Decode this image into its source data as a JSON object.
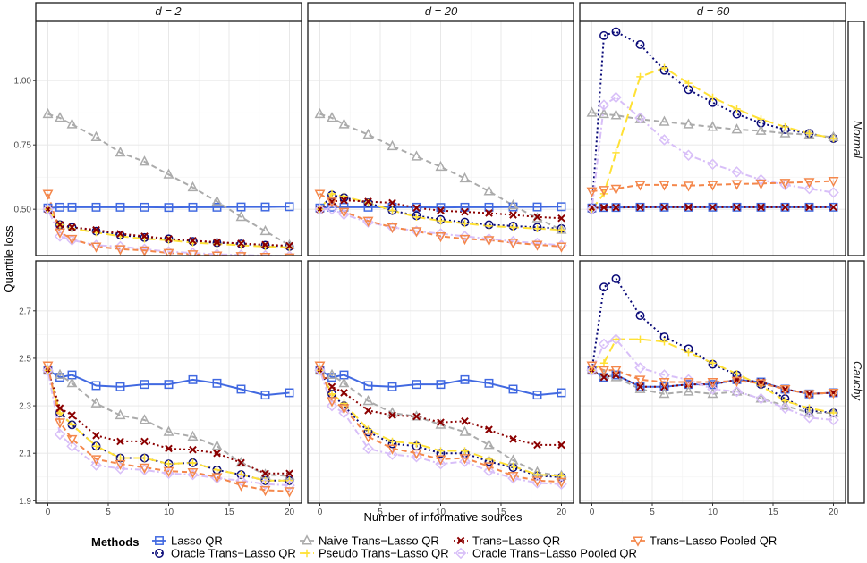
{
  "chart_data": {
    "type": "line",
    "ylabel": "Quantile loss",
    "xlabel": "Number of informative sources",
    "columns": [
      "d = 2",
      "d = 20",
      "d = 60"
    ],
    "rows": [
      "Normal",
      "Cauchy"
    ],
    "x": [
      0,
      1,
      2,
      4,
      6,
      8,
      10,
      12,
      14,
      16,
      18,
      20
    ],
    "x_ticks": [
      0,
      5,
      10,
      15,
      20
    ],
    "xlim": [
      -1,
      21
    ],
    "row_axes": [
      {
        "ylim": [
          0.32,
          1.23
        ],
        "ticks": [
          0.5,
          0.75,
          1.0
        ],
        "tick_labels": [
          "0.50",
          "0.75",
          "1.00"
        ]
      },
      {
        "ylim": [
          1.89,
          2.91
        ],
        "ticks": [
          1.9,
          2.1,
          2.3,
          2.5,
          2.7
        ],
        "tick_labels": [
          "1.9",
          "2.1",
          "2.3",
          "2.5",
          "2.7"
        ]
      }
    ],
    "legend": {
      "title": "Methods",
      "position": "bottom"
    },
    "series": [
      {
        "name": "Lasso QR",
        "color": "#4169E1",
        "dash": "solid",
        "marker": "square"
      },
      {
        "name": "Oracle Trans−Lasso QR",
        "color": "#0A0A78",
        "dash": "dotted",
        "marker": "circle"
      },
      {
        "name": "Naive Trans−Lasso QR",
        "color": "#ABABAB",
        "dash": "dashed",
        "marker": "triangle"
      },
      {
        "name": "Pseudo Trans−Lasso QR",
        "color": "#FFE135",
        "dash": "longdash",
        "marker": "plus"
      },
      {
        "name": "Trans−Lasso QR",
        "color": "#8B0000",
        "dash": "dotted",
        "marker": "cross"
      },
      {
        "name": "Oracle Trans−Lasso Pooled QR",
        "color": "#D8BFF8",
        "dash": "dotdash",
        "marker": "diamond"
      },
      {
        "name": "Trans−Lasso Pooled QR",
        "color": "#F4874B",
        "dash": "dashed",
        "marker": "triangle-down"
      }
    ],
    "panels": [
      {
        "row": 0,
        "col": 0,
        "values": [
          [
            0.505,
            0.508,
            0.508,
            0.508,
            0.508,
            0.508,
            0.507,
            0.508,
            0.508,
            0.509,
            0.509,
            0.51
          ],
          [
            0.5,
            0.44,
            0.43,
            0.415,
            0.4,
            0.39,
            0.385,
            0.375,
            0.37,
            0.365,
            0.36,
            0.355
          ],
          [
            0.87,
            0.855,
            0.83,
            0.78,
            0.72,
            0.685,
            0.635,
            0.585,
            0.53,
            0.47,
            0.415,
            0.36
          ],
          [
            0.5,
            0.44,
            0.425,
            0.41,
            0.395,
            0.385,
            0.38,
            0.37,
            0.365,
            0.36,
            0.355,
            0.352
          ],
          [
            0.5,
            0.44,
            0.43,
            0.42,
            0.405,
            0.395,
            0.385,
            0.378,
            0.372,
            0.367,
            0.362,
            0.358
          ],
          [
            0.5,
            0.395,
            0.38,
            0.36,
            0.355,
            0.345,
            0.335,
            0.33,
            0.325,
            0.322,
            0.32,
            0.318
          ],
          [
            0.56,
            0.41,
            0.385,
            0.355,
            0.345,
            0.34,
            0.33,
            0.325,
            0.32,
            0.318,
            0.315,
            0.313
          ]
        ]
      },
      {
        "row": 0,
        "col": 1,
        "values": [
          [
            0.505,
            0.508,
            0.508,
            0.508,
            0.508,
            0.508,
            0.507,
            0.508,
            0.508,
            0.509,
            0.509,
            0.51
          ],
          [
            0.5,
            0.555,
            0.545,
            0.525,
            0.495,
            0.475,
            0.46,
            0.45,
            0.44,
            0.435,
            0.43,
            0.425
          ],
          [
            0.87,
            0.855,
            0.83,
            0.79,
            0.745,
            0.705,
            0.665,
            0.62,
            0.57,
            0.515,
            0.465,
            0.42
          ],
          [
            0.5,
            0.56,
            0.55,
            0.525,
            0.495,
            0.47,
            0.455,
            0.445,
            0.435,
            0.43,
            0.425,
            0.42
          ],
          [
            0.5,
            0.53,
            0.535,
            0.53,
            0.525,
            0.505,
            0.495,
            0.49,
            0.485,
            0.478,
            0.47,
            0.465
          ],
          [
            0.5,
            0.5,
            0.48,
            0.45,
            0.43,
            0.415,
            0.405,
            0.395,
            0.385,
            0.375,
            0.368,
            0.36
          ],
          [
            0.56,
            0.53,
            0.49,
            0.455,
            0.43,
            0.415,
            0.395,
            0.385,
            0.38,
            0.37,
            0.362,
            0.355
          ]
        ]
      },
      {
        "row": 0,
        "col": 2,
        "values": [
          [
            0.505,
            0.507,
            0.507,
            0.508,
            0.508,
            0.508,
            0.508,
            0.508,
            0.508,
            0.508,
            0.508,
            0.508
          ],
          [
            0.5,
            1.175,
            1.19,
            1.14,
            1.04,
            0.965,
            0.915,
            0.87,
            0.835,
            0.81,
            0.795,
            0.775
          ],
          [
            0.875,
            0.87,
            0.865,
            0.85,
            0.84,
            0.83,
            0.82,
            0.81,
            0.805,
            0.795,
            0.79,
            0.78
          ],
          [
            0.5,
            0.56,
            0.72,
            1.015,
            1.05,
            0.99,
            0.935,
            0.89,
            0.85,
            0.82,
            0.795,
            0.775
          ],
          [
            0.505,
            0.507,
            0.507,
            0.508,
            0.508,
            0.508,
            0.508,
            0.508,
            0.508,
            0.508,
            0.508,
            0.508
          ],
          [
            0.5,
            0.905,
            0.935,
            0.855,
            0.77,
            0.71,
            0.675,
            0.645,
            0.615,
            0.595,
            0.58,
            0.565
          ],
          [
            0.57,
            0.575,
            0.58,
            0.595,
            0.595,
            0.592,
            0.595,
            0.598,
            0.6,
            0.603,
            0.606,
            0.61
          ]
        ]
      },
      {
        "row": 1,
        "col": 0,
        "values": [
          [
            2.45,
            2.42,
            2.43,
            2.385,
            2.38,
            2.39,
            2.39,
            2.41,
            2.395,
            2.37,
            2.345,
            2.355
          ],
          [
            2.45,
            2.27,
            2.22,
            2.13,
            2.08,
            2.08,
            2.055,
            2.06,
            2.03,
            2.01,
            1.985,
            1.985
          ],
          [
            2.45,
            2.43,
            2.395,
            2.31,
            2.26,
            2.24,
            2.19,
            2.17,
            2.13,
            2.06,
            2.01,
            2.005
          ],
          [
            2.45,
            2.27,
            2.22,
            2.13,
            2.08,
            2.08,
            2.055,
            2.06,
            2.03,
            2.01,
            1.985,
            1.985
          ],
          [
            2.45,
            2.29,
            2.26,
            2.175,
            2.15,
            2.15,
            2.12,
            2.115,
            2.1,
            2.06,
            2.015,
            2.015
          ],
          [
            2.45,
            2.18,
            2.13,
            2.05,
            2.035,
            2.03,
            2.015,
            2.01,
            1.995,
            1.985,
            1.97,
            1.965
          ],
          [
            2.47,
            2.23,
            2.16,
            2.075,
            2.055,
            2.04,
            2.025,
            2.02,
            2.0,
            1.965,
            1.945,
            1.94
          ]
        ]
      },
      {
        "row": 1,
        "col": 1,
        "values": [
          [
            2.45,
            2.42,
            2.43,
            2.385,
            2.38,
            2.39,
            2.39,
            2.41,
            2.395,
            2.37,
            2.345,
            2.355
          ],
          [
            2.45,
            2.35,
            2.3,
            2.19,
            2.14,
            2.13,
            2.1,
            2.1,
            2.065,
            2.04,
            2.005,
            2.0
          ],
          [
            2.45,
            2.43,
            2.395,
            2.32,
            2.27,
            2.255,
            2.22,
            2.19,
            2.135,
            2.07,
            2.02,
            2.005
          ],
          [
            2.45,
            2.35,
            2.31,
            2.2,
            2.15,
            2.14,
            2.11,
            2.11,
            2.075,
            2.045,
            2.01,
            2.005
          ],
          [
            2.45,
            2.38,
            2.355,
            2.28,
            2.26,
            2.255,
            2.23,
            2.235,
            2.2,
            2.16,
            2.135,
            2.135
          ],
          [
            2.45,
            2.3,
            2.27,
            2.12,
            2.095,
            2.085,
            2.055,
            2.065,
            2.025,
            1.995,
            1.975,
            1.97
          ],
          [
            2.47,
            2.32,
            2.29,
            2.17,
            2.12,
            2.1,
            2.075,
            2.08,
            2.045,
            2.005,
            1.985,
            1.98
          ]
        ]
      },
      {
        "row": 1,
        "col": 2,
        "values": [
          [
            2.45,
            2.42,
            2.43,
            2.38,
            2.38,
            2.39,
            2.39,
            2.41,
            2.4,
            2.37,
            2.35,
            2.355
          ],
          [
            2.45,
            2.8,
            2.835,
            2.68,
            2.59,
            2.54,
            2.475,
            2.43,
            2.39,
            2.33,
            2.28,
            2.27
          ],
          [
            2.45,
            2.43,
            2.42,
            2.37,
            2.35,
            2.36,
            2.35,
            2.36,
            2.33,
            2.3,
            2.27,
            2.27
          ],
          [
            2.45,
            2.48,
            2.58,
            2.58,
            2.57,
            2.525,
            2.48,
            2.435,
            2.385,
            2.32,
            2.29,
            2.27
          ],
          [
            2.45,
            2.42,
            2.43,
            2.38,
            2.38,
            2.39,
            2.39,
            2.41,
            2.4,
            2.37,
            2.35,
            2.355
          ],
          [
            2.45,
            2.56,
            2.58,
            2.46,
            2.43,
            2.41,
            2.37,
            2.36,
            2.33,
            2.29,
            2.25,
            2.24
          ],
          [
            2.47,
            2.45,
            2.45,
            2.41,
            2.4,
            2.4,
            2.4,
            2.405,
            2.395,
            2.37,
            2.35,
            2.355
          ]
        ]
      }
    ]
  }
}
